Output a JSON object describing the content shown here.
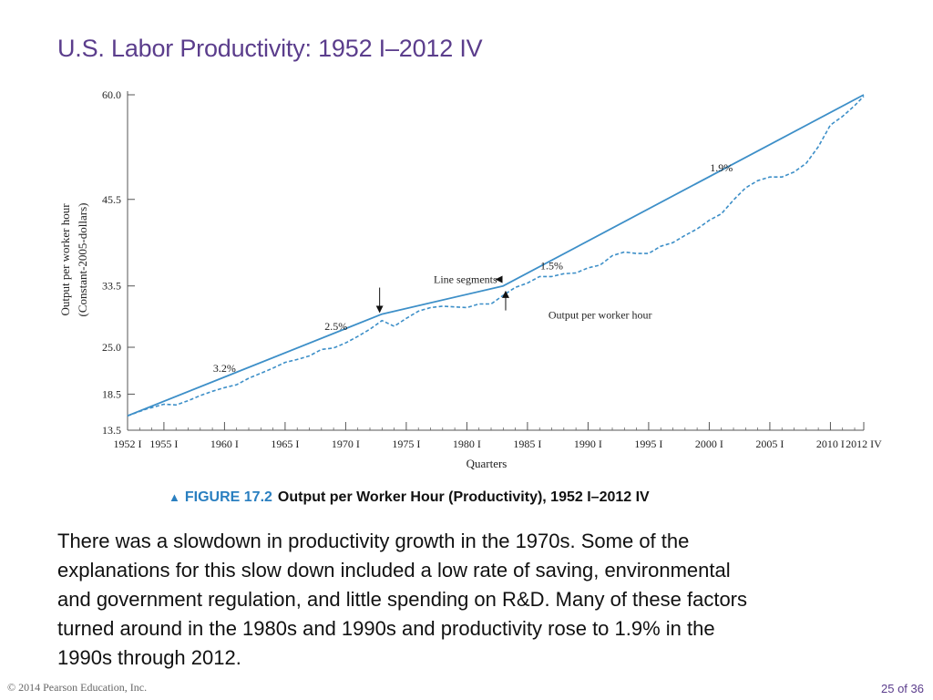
{
  "slide": {
    "title": "U.S. Labor Productivity: 1952 I–2012 IV",
    "caption_marker": "▲",
    "caption_label": "FIGURE 17.2",
    "caption_title": "Output per Worker Hour (Productivity), 1952 I–2012 IV",
    "body": "There was a slowdown in productivity growth in the 1970s.  Some of the\nexplanations for this slow down included a low rate of saving, environmental\nand government regulation, and little spending on R&D. Many of these factors\nturned around in the 1980s and 1990s and productivity rose to 1.9% in the\n1990s through 2012.",
    "footer_copyright": "© 2014 Pearson Education, Inc.",
    "footer_page": "25 of 36"
  },
  "colors": {
    "title": "#5b3d8c",
    "series": "#3d8fc8",
    "axis": "#555555",
    "caption_accent": "#2a7fc0"
  },
  "chart_data": {
    "type": "line",
    "title": "",
    "xlabel": "Quarters",
    "ylabel_lines": [
      "Output per worker hour",
      "(Constant-2005-dollars)"
    ],
    "ylim": [
      13.5,
      60.0
    ],
    "xlim": [
      1952.0,
      2012.75
    ],
    "y_ticks": [
      13.5,
      18.5,
      25.0,
      33.5,
      45.5,
      60.0
    ],
    "y_tick_labels": [
      "13.5",
      "18.5",
      "25.0",
      "33.5",
      "45.5",
      "60.0"
    ],
    "x_tick_labels": [
      "1952 I",
      "1955 I",
      "1960 I",
      "1965 I",
      "1970 I",
      "1975 I",
      "1980 I",
      "1985 I",
      "1990 I",
      "1995 I",
      "2000 I",
      "2005 I",
      "2010 I",
      "2012 IV"
    ],
    "x_tick_values": [
      1952,
      1955,
      1960,
      1965,
      1970,
      1975,
      1980,
      1985,
      1990,
      1995,
      2000,
      2005,
      2010,
      2012.75
    ],
    "series": [
      {
        "name": "Line segments",
        "style": "solid",
        "x": [
          1952.0,
          1973.0,
          1983.0,
          2012.75
        ],
        "y": [
          15.5,
          29.6,
          33.5,
          60.0
        ]
      },
      {
        "name": "Output per worker hour",
        "style": "dashed",
        "x": [
          1952.0,
          1953.5,
          1955.0,
          1956.0,
          1957.0,
          1958.0,
          1959.0,
          1960.0,
          1961.0,
          1962.0,
          1963.0,
          1964.0,
          1965.0,
          1966.0,
          1967.0,
          1968.0,
          1969.0,
          1970.0,
          1971.0,
          1972.0,
          1973.0,
          1974.0,
          1975.0,
          1976.0,
          1977.0,
          1978.0,
          1979.0,
          1980.0,
          1981.0,
          1982.0,
          1983.0,
          1984.0,
          1985.0,
          1986.0,
          1987.0,
          1988.0,
          1989.0,
          1990.0,
          1991.0,
          1992.0,
          1993.0,
          1994.0,
          1995.0,
          1996.0,
          1997.0,
          1998.0,
          1999.0,
          2000.0,
          2001.0,
          2002.0,
          2003.0,
          2004.0,
          2005.0,
          2006.0,
          2007.0,
          2008.0,
          2009.0,
          2010.0,
          2011.0,
          2012.0,
          2012.75
        ],
        "y": [
          15.5,
          16.4,
          17.1,
          17.0,
          17.6,
          18.3,
          18.9,
          19.4,
          19.8,
          20.7,
          21.4,
          22.1,
          22.9,
          23.3,
          23.8,
          24.7,
          24.9,
          25.6,
          26.5,
          27.5,
          28.7,
          27.9,
          29.0,
          30.0,
          30.5,
          30.7,
          30.6,
          30.5,
          31.0,
          31.0,
          32.2,
          33.3,
          33.9,
          34.8,
          34.8,
          35.2,
          35.3,
          36.0,
          36.4,
          37.7,
          38.2,
          38.0,
          38.0,
          39.0,
          39.5,
          40.5,
          41.4,
          42.6,
          43.5,
          45.4,
          47.1,
          48.1,
          48.6,
          48.6,
          49.3,
          50.5,
          52.8,
          55.8,
          57.0,
          58.5,
          59.8
        ]
      }
    ],
    "annotations": [
      {
        "text": "3.2%",
        "x": 1960.0,
        "y": 21.6
      },
      {
        "text": "2.5%",
        "x": 1969.2,
        "y": 27.4
      },
      {
        "text": "1.5%",
        "x": 1987.0,
        "y": 35.8
      },
      {
        "text": "1.9%",
        "x": 2001.0,
        "y": 49.4
      },
      {
        "text": "Line segments",
        "x": 1982.5,
        "y": 33.9
      },
      {
        "text": "Output per worker hour",
        "x": 1991.0,
        "y": 29.0
      }
    ]
  }
}
